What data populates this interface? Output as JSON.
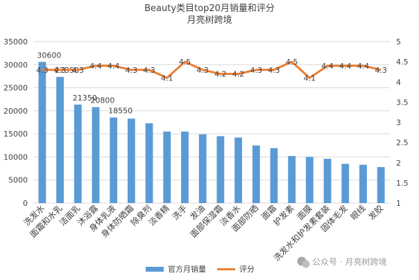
{
  "chart_data": {
    "type": "bar",
    "title": "Beauty类目top20月销量和评分",
    "subtitle": "月亮树跨境",
    "xlabel": "",
    "ylabel": "",
    "categories": [
      "洗发水",
      "面霜和水乳",
      "洁面乳",
      "沐浴露",
      "身体乳液",
      "身体防晒霜",
      "除臭剂",
      "淡香精",
      "洗手",
      "发油",
      "面部保湿霜",
      "淡香水",
      "面部防晒",
      "面霜",
      "护发素",
      "面膜",
      "洗发水和护发素套装",
      "固体毛发",
      "眼线",
      "发胶"
    ],
    "series": [
      {
        "name": "官方月销量",
        "type": "bar",
        "axis": "left",
        "color": "#5b9bd5",
        "values": [
          30600,
          27350,
          21350,
          20800,
          18550,
          18300,
          17300,
          15500,
          15500,
          14900,
          14500,
          14200,
          12500,
          11900,
          10200,
          10000,
          9600,
          8500,
          8300,
          7800
        ],
        "data_labels": [
          "30600",
          "27350",
          "21350",
          "20800",
          "18550"
        ]
      },
      {
        "name": "评分",
        "type": "line",
        "axis": "right",
        "color": "#ed7d31",
        "values": [
          4.3,
          4.3,
          4.3,
          4.4,
          4.4,
          4.3,
          4.3,
          4.1,
          4.5,
          4.3,
          4.2,
          4.2,
          4.3,
          4.3,
          4.5,
          4.1,
          4.4,
          4.4,
          4.4,
          4.3
        ],
        "data_labels": [
          "4.3",
          "4.3",
          "4.3",
          "4.4",
          "4.4",
          "4.3",
          "4.3",
          "4.1",
          "4.5",
          "4.3",
          "4.2",
          "4.2",
          "4.3",
          "4.3",
          "4.5",
          "4.1",
          "4.4",
          "4.4",
          "4.4",
          "4.3"
        ]
      }
    ],
    "y_left": {
      "ylim": [
        0,
        35000
      ],
      "ticks": [
        "0",
        "5000",
        "10000",
        "15000",
        "20000",
        "25000",
        "30000",
        "35000"
      ]
    },
    "y_right": {
      "ylim": [
        1,
        5
      ],
      "ticks": [
        "1",
        "1.5",
        "2",
        "2.5",
        "3",
        "3.5",
        "4",
        "4.5",
        "5"
      ]
    },
    "grid": true,
    "legend_position": "bottom"
  },
  "watermark": {
    "text": "公众号 · 月亮树跨境"
  },
  "colors": {
    "bar": "#5b9bd5",
    "line": "#ed7d31",
    "grid": "#d9d9d9",
    "text": "#404040"
  }
}
